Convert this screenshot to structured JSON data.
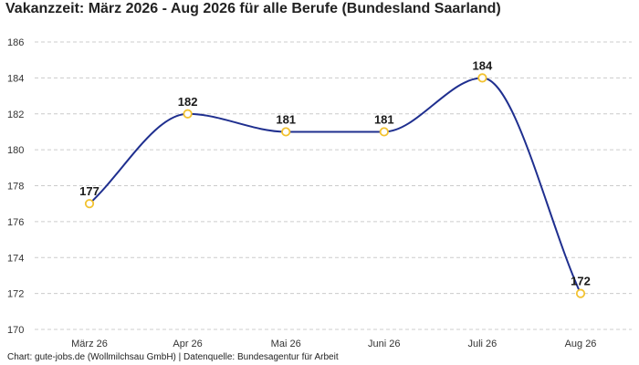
{
  "title": "Vakanzzeit: März 2026 - Aug 2026 für alle Berufe (Bundesland Saarland)",
  "footer": "Chart: gute-jobs.de (Wollmilchsau GmbH) | Datenquelle: Bundesagentur für Arbeit",
  "colors": {
    "line": "#1f2f8f",
    "marker_stroke": "#f2c230",
    "marker_fill": "#ffffff",
    "grid": "#cccccc"
  },
  "chart_data": {
    "type": "line",
    "title": "Vakanzzeit: März 2026 - Aug 2026 für alle Berufe (Bundesland Saarland)",
    "categories": [
      "März 26",
      "Apr 26",
      "Mai 26",
      "Juni 26",
      "Juli 26",
      "Aug 26"
    ],
    "series": [
      {
        "values": [
          177,
          182,
          181,
          181,
          184,
          172
        ]
      }
    ],
    "data_labels": [
      "177",
      "182",
      "181",
      "181",
      "184",
      "172"
    ],
    "y_ticks": [
      "170",
      "172",
      "174",
      "176",
      "178",
      "180",
      "182",
      "184",
      "186"
    ],
    "ylim": [
      170,
      186
    ],
    "xlabel": "",
    "ylabel": "",
    "grid": "horizontal-dashed",
    "legend": "none",
    "smooth": true
  }
}
